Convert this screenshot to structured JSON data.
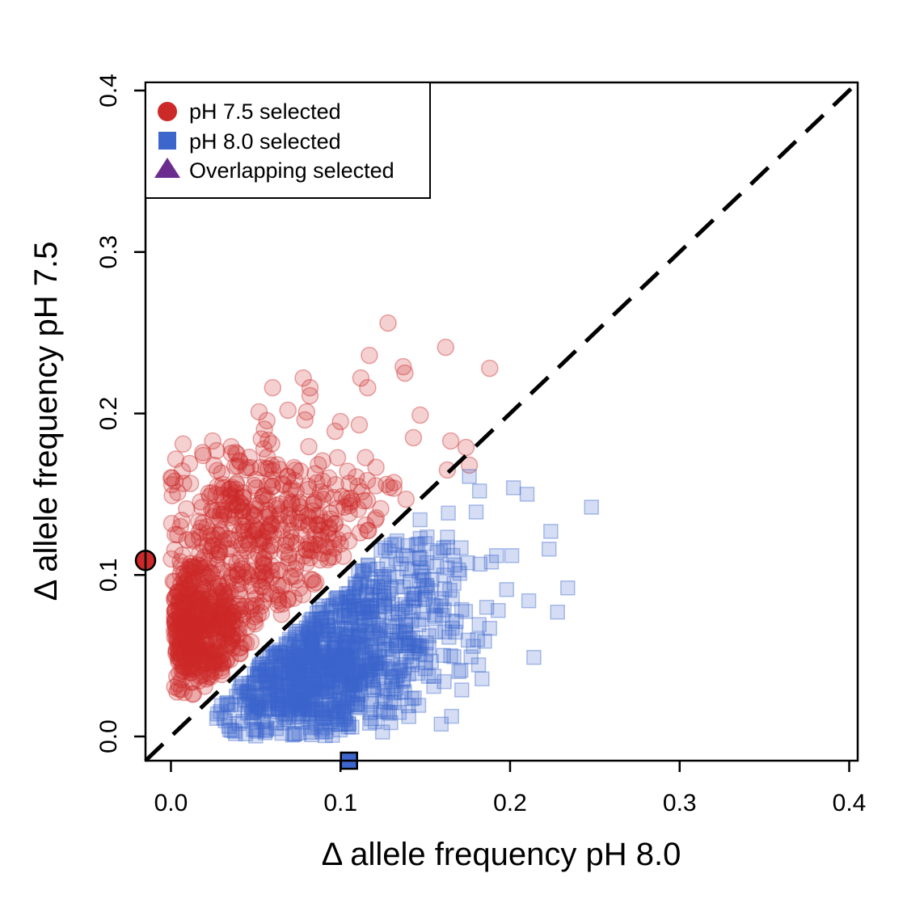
{
  "chart_data": {
    "type": "scatter",
    "title": "",
    "xlabel": "Δ allele frequency pH 8.0",
    "ylabel": "Δ allele frequency pH 7.5",
    "xlim": [
      -0.015,
      0.405
    ],
    "ylim": [
      -0.015,
      0.405
    ],
    "xticks": [
      "0.0",
      "0.1",
      "0.2",
      "0.3",
      "0.4"
    ],
    "yticks": [
      "0.0",
      "0.1",
      "0.2",
      "0.3",
      "0.4"
    ],
    "grid": false,
    "legend": {
      "position": "top-left"
    },
    "reference_line": {
      "type": "identity",
      "style": "dashed",
      "color": "#000000"
    },
    "series": [
      {
        "name": "pH 7.5 selected",
        "marker": "circle",
        "color": "#cc2929",
        "opacity": 0.22,
        "approx_count": 900,
        "cluster_center": [
          0.05,
          0.11
        ],
        "x_range": [
          0.0,
          0.19
        ],
        "y_range": [
          0.025,
          0.26
        ],
        "points": [
          [
            0.128,
            0.256
          ],
          [
            0.162,
            0.241
          ],
          [
            0.188,
            0.228
          ],
          [
            0.117,
            0.236
          ],
          [
            0.137,
            0.229
          ],
          [
            0.138,
            0.225
          ],
          [
            0.112,
            0.222
          ],
          [
            0.078,
            0.222
          ],
          [
            0.082,
            0.216
          ],
          [
            0.06,
            0.216
          ],
          [
            0.116,
            0.216
          ],
          [
            0.082,
            0.211
          ],
          [
            0.069,
            0.202
          ],
          [
            0.08,
            0.201
          ],
          [
            0.147,
            0.199
          ],
          [
            0.052,
            0.201
          ],
          [
            0.079,
            0.196
          ],
          [
            0.1,
            0.195
          ],
          [
            0.174,
            0.179
          ],
          [
            0.165,
            0.183
          ],
          [
            0.176,
            0.168
          ],
          [
            0.163,
            0.165
          ],
          [
            0.143,
            0.185
          ],
          [
            0.027,
            0.177
          ],
          [
            0.011,
            0.169
          ]
        ]
      },
      {
        "name": "pH 8.0 selected",
        "marker": "square",
        "color": "#3d66cc",
        "opacity": 0.22,
        "approx_count": 1000,
        "cluster_center": [
          0.085,
          0.045
        ],
        "x_range": [
          0.025,
          0.25
        ],
        "y_range": [
          0.0,
          0.16
        ],
        "points": [
          [
            0.248,
            0.142
          ],
          [
            0.224,
            0.127
          ],
          [
            0.223,
            0.116
          ],
          [
            0.234,
            0.092
          ],
          [
            0.228,
            0.077
          ],
          [
            0.214,
            0.049
          ],
          [
            0.211,
            0.084
          ],
          [
            0.21,
            0.15
          ],
          [
            0.202,
            0.154
          ],
          [
            0.201,
            0.112
          ],
          [
            0.198,
            0.091
          ],
          [
            0.193,
            0.078
          ],
          [
            0.192,
            0.112
          ],
          [
            0.189,
            0.108
          ],
          [
            0.188,
            0.067
          ],
          [
            0.185,
            0.059
          ],
          [
            0.182,
            0.152
          ],
          [
            0.18,
            0.139
          ],
          [
            0.176,
            0.161
          ],
          [
            0.171,
            0.041
          ],
          [
            0.165,
            0.05
          ],
          [
            0.16,
            0.075
          ],
          [
            0.155,
            0.031
          ],
          [
            0.15,
            0.042
          ],
          [
            0.14,
            0.019
          ]
        ]
      },
      {
        "name": "Overlapping selected",
        "marker": "triangle",
        "color": "#6a2d8f",
        "points": []
      }
    ],
    "highlighted_points": [
      {
        "series": "pH 7.5 selected",
        "marker": "circle",
        "color": "#cc2929",
        "x": -0.015,
        "y": 0.109
      },
      {
        "series": "pH 8.0 selected",
        "marker": "square",
        "color": "#3d66cc",
        "x": 0.105,
        "y": -0.015
      }
    ]
  }
}
